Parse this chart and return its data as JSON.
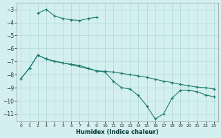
{
  "xlabel": "Humidex (Indice chaleur)",
  "bg_color": "#d4efef",
  "grid_color": "#aed8d8",
  "line_color": "#1a7a6e",
  "xlim": [
    -0.5,
    23.5
  ],
  "ylim": [
    -11.6,
    -2.5
  ],
  "yticks": [
    -11,
    -10,
    -9,
    -8,
    -7,
    -6,
    -5,
    -4,
    -3
  ],
  "xticks": [
    0,
    1,
    2,
    3,
    4,
    5,
    6,
    7,
    8,
    9,
    10,
    11,
    12,
    13,
    14,
    15,
    16,
    17,
    18,
    19,
    20,
    21,
    22,
    23
  ],
  "series1_x": [
    2,
    3,
    4,
    5,
    6,
    7,
    8,
    9
  ],
  "series1_y": [
    -3.3,
    -3.0,
    -3.5,
    -3.7,
    -3.8,
    -3.85,
    -3.7,
    -3.6
  ],
  "series2_x": [
    0,
    1,
    2,
    3,
    4,
    5,
    6,
    7,
    8,
    9,
    10,
    11,
    12,
    13,
    14,
    15,
    16,
    17,
    18,
    19,
    20,
    21,
    22,
    23
  ],
  "series2_y": [
    -8.3,
    -7.5,
    -6.5,
    -6.8,
    -7.0,
    -7.1,
    -7.2,
    -7.3,
    -7.5,
    -7.7,
    -7.75,
    -7.8,
    -7.9,
    -8.0,
    -8.1,
    -8.2,
    -8.35,
    -8.5,
    -8.6,
    -8.75,
    -8.85,
    -8.95,
    -9.0,
    -9.1
  ],
  "series3_x": [
    0,
    1,
    2,
    3,
    9,
    10,
    11,
    12,
    13,
    14,
    15,
    16,
    17,
    18,
    19,
    20,
    21,
    22,
    23
  ],
  "series3_y": [
    -8.3,
    -7.5,
    -6.5,
    -6.8,
    -7.7,
    -7.8,
    -8.5,
    -9.0,
    -9.1,
    -9.6,
    -10.4,
    -11.4,
    -11.0,
    -9.8,
    -9.2,
    -9.2,
    -9.3,
    -9.55,
    -9.7
  ]
}
